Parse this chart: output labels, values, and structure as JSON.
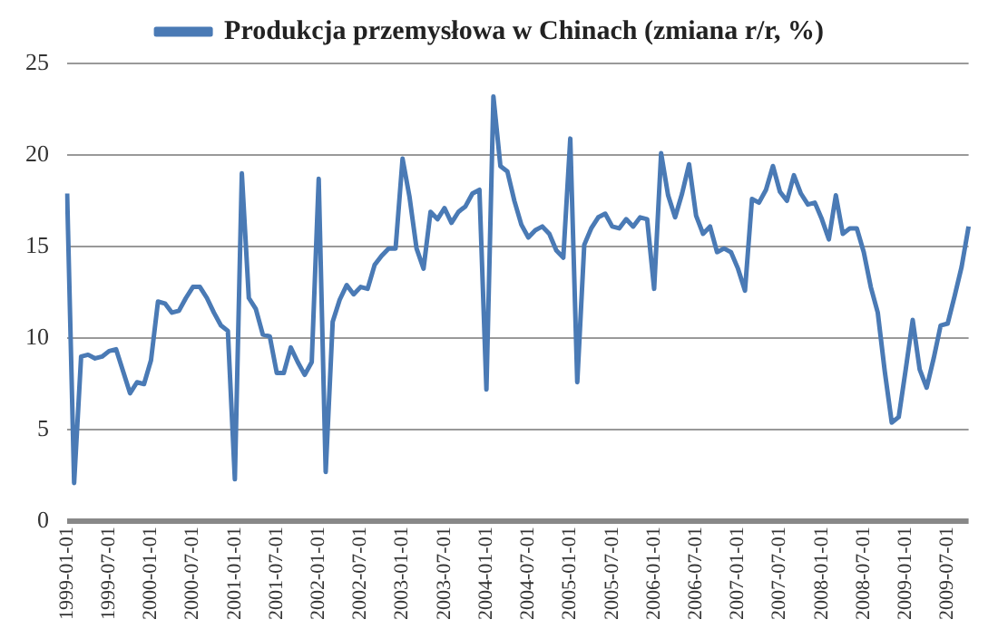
{
  "chart_data": {
    "type": "line",
    "categories": [
      "1999-01-01",
      null,
      null,
      null,
      null,
      null,
      "1999-07-01",
      null,
      null,
      null,
      null,
      null,
      "2000-01-01",
      null,
      null,
      null,
      null,
      null,
      "2000-07-01",
      null,
      null,
      null,
      null,
      null,
      "2001-01-01",
      null,
      null,
      null,
      null,
      null,
      "2001-07-01",
      null,
      null,
      null,
      null,
      null,
      "2002-01-01",
      null,
      null,
      null,
      null,
      null,
      "2002-07-01",
      null,
      null,
      null,
      null,
      null,
      "2003-01-01",
      null,
      null,
      null,
      null,
      null,
      "2003-07-01",
      null,
      null,
      null,
      null,
      null,
      "2004-01-01",
      null,
      null,
      null,
      null,
      null,
      "2004-07-01",
      null,
      null,
      null,
      null,
      null,
      "2005-01-01",
      null,
      null,
      null,
      null,
      null,
      "2005-07-01",
      null,
      null,
      null,
      null,
      null,
      "2006-01-01",
      null,
      null,
      null,
      null,
      null,
      "2006-07-01",
      null,
      null,
      null,
      null,
      null,
      "2007-01-01",
      null,
      null,
      null,
      null,
      null,
      "2007-07-01",
      null,
      null,
      null,
      null,
      null,
      "2008-01-01",
      null,
      null,
      null,
      null,
      null,
      "2008-07-01",
      null,
      null,
      null,
      null,
      null,
      "2009-01-01",
      null,
      null,
      null,
      null,
      null,
      "2009-07-01",
      null,
      null,
      null
    ],
    "series": [
      {
        "name": "Produkcja przemysłowa w Chinach (zmiana r/r, %)",
        "color": "#4a7ab5",
        "values": [
          17.9,
          2.1,
          9.0,
          9.1,
          8.9,
          9.0,
          9.3,
          9.4,
          8.2,
          7.0,
          7.6,
          7.5,
          8.8,
          12.0,
          11.9,
          11.4,
          11.5,
          12.2,
          12.8,
          12.8,
          12.2,
          11.4,
          10.7,
          10.4,
          2.3,
          19.0,
          12.2,
          11.6,
          10.2,
          10.1,
          8.1,
          8.1,
          9.5,
          8.7,
          8.0,
          8.7,
          18.7,
          2.7,
          10.9,
          12.1,
          12.9,
          12.4,
          12.8,
          12.7,
          14.0,
          14.5,
          14.9,
          14.9,
          19.8,
          17.7,
          14.9,
          13.8,
          16.9,
          16.5,
          17.1,
          16.3,
          16.9,
          17.2,
          17.9,
          18.1,
          7.2,
          23.2,
          19.4,
          19.1,
          17.5,
          16.2,
          15.5,
          15.9,
          16.1,
          15.7,
          14.8,
          14.4,
          20.9,
          7.6,
          15.1,
          16.0,
          16.6,
          16.8,
          16.1,
          16.0,
          16.5,
          16.1,
          16.6,
          16.5,
          12.7,
          20.1,
          17.8,
          16.6,
          17.9,
          19.5,
          16.7,
          15.7,
          16.1,
          14.7,
          14.9,
          14.7,
          13.8,
          12.6,
          17.6,
          17.4,
          18.1,
          19.4,
          18.0,
          17.5,
          18.9,
          17.9,
          17.3,
          17.4,
          16.5,
          15.4,
          17.8,
          15.7,
          16.0,
          16.0,
          14.7,
          12.8,
          11.4,
          8.2,
          5.4,
          5.7,
          8.3,
          11.0,
          8.3,
          7.3,
          8.9,
          10.7,
          10.8,
          12.3,
          13.9,
          16.1
        ]
      }
    ],
    "ylim": [
      0,
      25
    ],
    "yticks": [
      0,
      5,
      10,
      15,
      20,
      25
    ],
    "grid": "y",
    "legend": "top"
  }
}
